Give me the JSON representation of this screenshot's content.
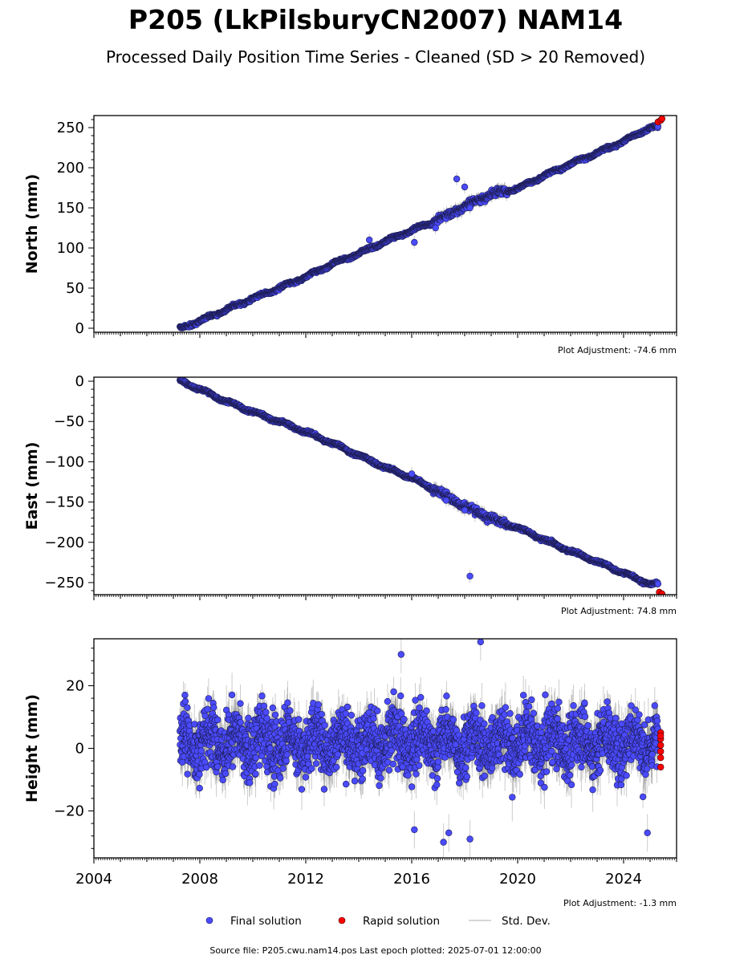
{
  "header": {
    "title": "P205 (LkPilsburyCN2007) NAM14",
    "subtitle": "Processed Daily Position Time Series - Cleaned (SD > 20 Removed)"
  },
  "chart_data": [
    {
      "type": "scatter",
      "ylabel": "North (mm)",
      "xlim": [
        2004.0,
        2026.0
      ],
      "ylim": [
        -5,
        265
      ],
      "yticks": [
        0,
        50,
        100,
        150,
        200,
        250
      ],
      "plot_adjustment": "Plot Adjustment: -74.6 mm",
      "series": [
        {
          "name": "Final solution",
          "color": "#4a4aff",
          "x": [
            2007.3,
            2008.0,
            2009.0,
            2010.0,
            2011.0,
            2012.0,
            2013.0,
            2014.0,
            2015.0,
            2016.0,
            2017.0,
            2018.0,
            2019.0,
            2020.0,
            2021.0,
            2022.0,
            2023.0,
            2024.0,
            2025.0
          ],
          "y": [
            0,
            9,
            23,
            37,
            50,
            64,
            80,
            93,
            108,
            122,
            135,
            152,
            167,
            174,
            190,
            205,
            218,
            233,
            250
          ]
        },
        {
          "name": "Rapid solution",
          "color": "#ff0000",
          "x": [
            2025.3,
            2025.4,
            2025.45
          ],
          "y": [
            257,
            259,
            261
          ]
        }
      ],
      "outliers": {
        "x": [
          2017.7,
          2018.0,
          2016.1,
          2016.9,
          2018.2,
          2014.4
        ],
        "y": [
          186,
          176,
          107,
          125,
          150,
          110
        ]
      }
    },
    {
      "type": "scatter",
      "ylabel": "East (mm)",
      "xlim": [
        2004.0,
        2026.0
      ],
      "ylim": [
        -265,
        5
      ],
      "yticks": [
        0,
        -50,
        -100,
        -150,
        -200,
        -250
      ],
      "plot_adjustment": "Plot Adjustment: 74.8 mm",
      "series": [
        {
          "name": "Final solution",
          "color": "#4a4aff",
          "x": [
            2007.3,
            2008.0,
            2009.0,
            2010.0,
            2011.0,
            2012.0,
            2013.0,
            2014.0,
            2015.0,
            2016.0,
            2017.0,
            2018.0,
            2019.0,
            2020.0,
            2021.0,
            2022.0,
            2023.0,
            2024.0,
            2025.0
          ],
          "y": [
            0,
            -10,
            -25,
            -38,
            -50,
            -63,
            -77,
            -92,
            -107,
            -120,
            -137,
            -155,
            -170,
            -182,
            -197,
            -211,
            -224,
            -238,
            -252
          ]
        },
        {
          "name": "Rapid solution",
          "color": "#ff0000",
          "x": [
            2025.35,
            2025.45
          ],
          "y": [
            -262,
            -264
          ]
        }
      ],
      "outliers": {
        "x": [
          2018.2,
          2016.0,
          2017.3,
          2018.0
        ],
        "y": [
          -242,
          -115,
          -148,
          -160
        ]
      }
    },
    {
      "type": "scatter",
      "ylabel": "Height (mm)",
      "xlim": [
        2004.0,
        2026.0
      ],
      "ylim": [
        -35,
        35
      ],
      "yticks": [
        20,
        0,
        -20
      ],
      "xticks": [
        "2004",
        "2008",
        "2012",
        "2016",
        "2020",
        "2024"
      ],
      "plot_adjustment": "Plot Adjustment: -1.3 mm",
      "series": [
        {
          "name": "Final solution",
          "color": "#4a4aff",
          "mean": 2,
          "spread": 9
        },
        {
          "name": "Rapid solution",
          "color": "#ff0000",
          "x": [
            2025.4,
            2025.4,
            2025.4,
            2025.4,
            2025.4,
            2025.4,
            2025.4
          ],
          "y": [
            5,
            3,
            1,
            -1,
            -3,
            -6,
            4
          ]
        }
      ],
      "outliers": {
        "x": [
          2018.6,
          2015.6,
          2016.1,
          2018.2,
          2017.2,
          2017.4,
          2024.9
        ],
        "y": [
          34,
          30,
          -26,
          -29,
          -30,
          -27,
          -27
        ]
      }
    }
  ],
  "legend": [
    {
      "label": "Final solution",
      "color": "#4a4aff",
      "marker": "dot"
    },
    {
      "label": "Rapid solution",
      "color": "#ff0000",
      "marker": "dot"
    },
    {
      "label": "Std. Dev.",
      "color": "#c8c8c8",
      "marker": "line"
    }
  ],
  "footer": {
    "source": "Source file: P205.cwu.nam14.pos  Last epoch plotted: 2025-07-01 12:00:00"
  }
}
